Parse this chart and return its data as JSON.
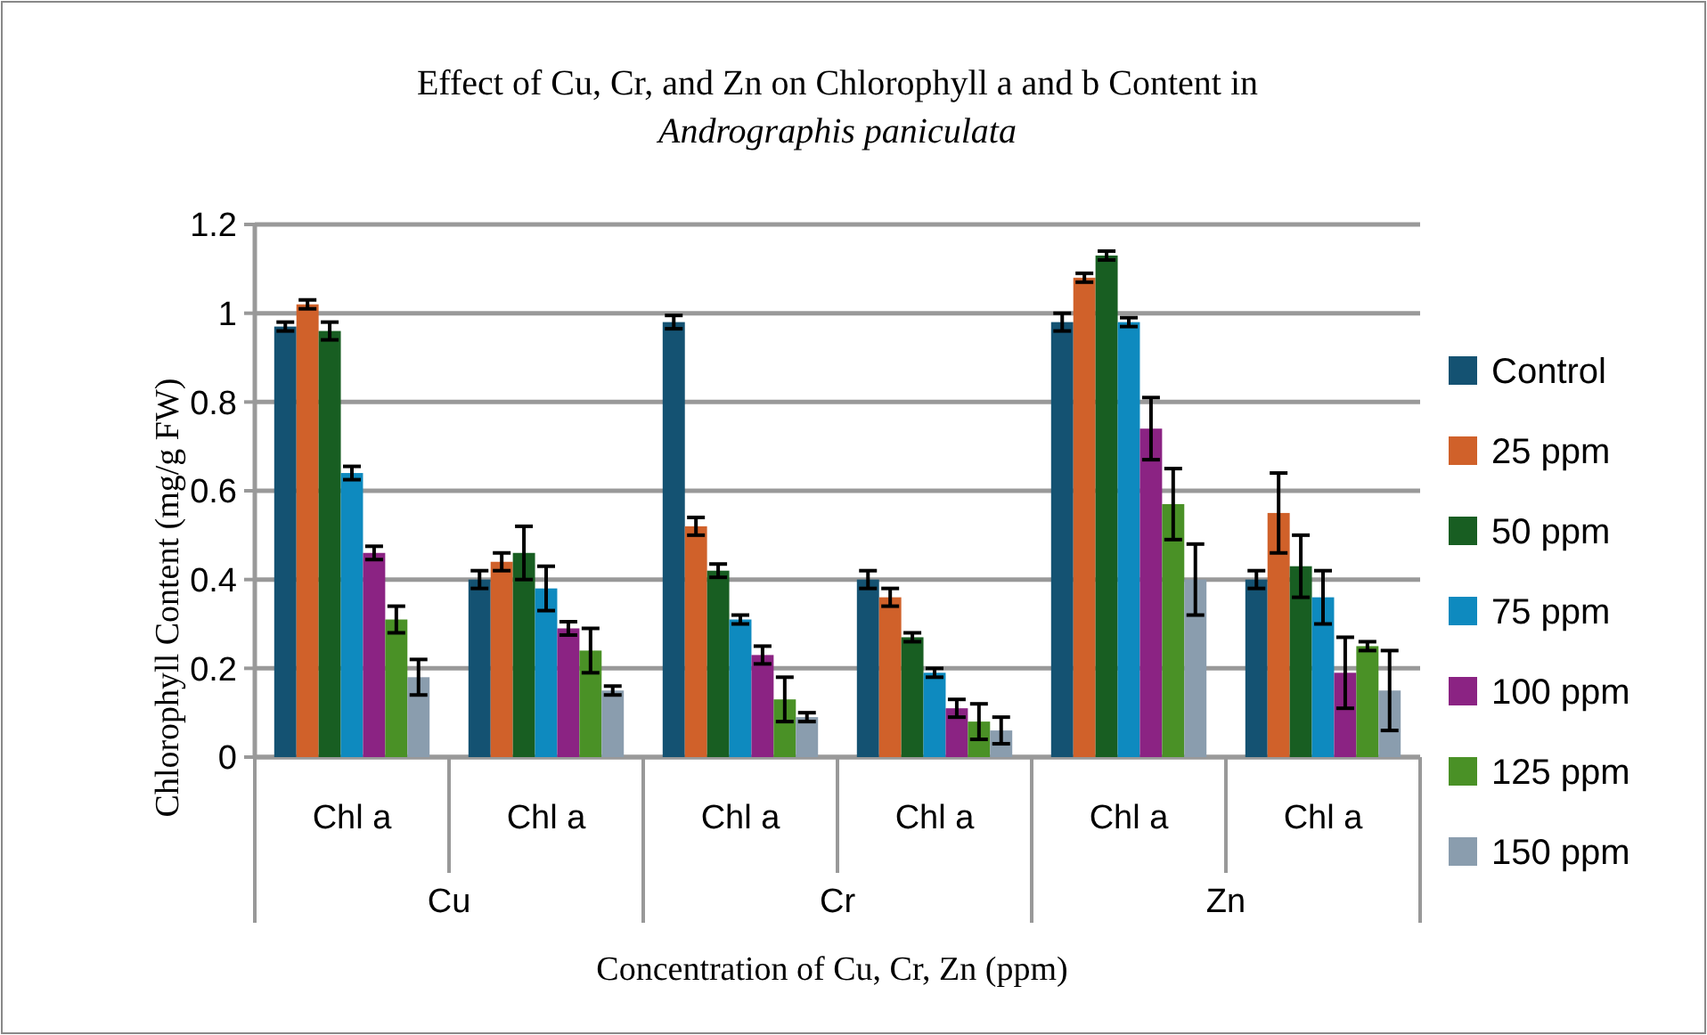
{
  "chart_data": {
    "type": "bar",
    "title": "Effect of Cu, Cr, and Zn on Chlorophyll a and b Content in",
    "subtitle": "Andrographis paniculata",
    "xlabel": "Concentration of Cu, Cr, Zn (ppm)",
    "ylabel": "Chlorophyll Content (mg/g FW)",
    "categories": [
      "Chl a",
      "Chl a",
      "Chl a",
      "Chl a",
      "Chl a",
      "Chl a"
    ],
    "annotations": [
      "Cu",
      "Cr",
      "Zn"
    ],
    "ylim": [
      0,
      1.2
    ],
    "yticks": [
      0,
      0.2,
      0.4,
      0.6,
      0.8,
      1,
      1.2
    ],
    "grid": "y",
    "legend": "right",
    "series": [
      {
        "name": "Control",
        "color": "#145272",
        "values": [
          0.97,
          0.4,
          0.98,
          0.4,
          0.98,
          0.4
        ],
        "errors": [
          0.01,
          0.02,
          0.015,
          0.02,
          0.02,
          0.02
        ]
      },
      {
        "name": "25 ppm",
        "color": "#d0612a",
        "values": [
          1.02,
          0.44,
          0.52,
          0.36,
          1.08,
          0.55
        ],
        "errors": [
          0.01,
          0.02,
          0.02,
          0.02,
          0.01,
          0.09
        ]
      },
      {
        "name": "50 ppm",
        "color": "#185e22",
        "values": [
          0.96,
          0.46,
          0.42,
          0.27,
          1.13,
          0.43
        ],
        "errors": [
          0.02,
          0.06,
          0.015,
          0.01,
          0.01,
          0.07
        ]
      },
      {
        "name": "75 ppm",
        "color": "#0e8abf",
        "values": [
          0.64,
          0.38,
          0.31,
          0.19,
          0.98,
          0.36
        ],
        "errors": [
          0.015,
          0.05,
          0.01,
          0.01,
          0.01,
          0.06
        ]
      },
      {
        "name": "100 ppm",
        "color": "#8b2383",
        "values": [
          0.46,
          0.29,
          0.23,
          0.11,
          0.74,
          0.19
        ],
        "errors": [
          0.015,
          0.015,
          0.02,
          0.02,
          0.07,
          0.08
        ]
      },
      {
        "name": "125 ppm",
        "color": "#4a9126",
        "values": [
          0.31,
          0.24,
          0.13,
          0.08,
          0.57,
          0.25
        ],
        "errors": [
          0.03,
          0.05,
          0.05,
          0.04,
          0.08,
          0.01
        ]
      },
      {
        "name": "150 ppm",
        "color": "#8a9dae",
        "values": [
          0.18,
          0.15,
          0.09,
          0.06,
          0.4,
          0.15
        ],
        "errors": [
          0.04,
          0.01,
          0.01,
          0.03,
          0.08,
          0.09
        ]
      }
    ]
  }
}
